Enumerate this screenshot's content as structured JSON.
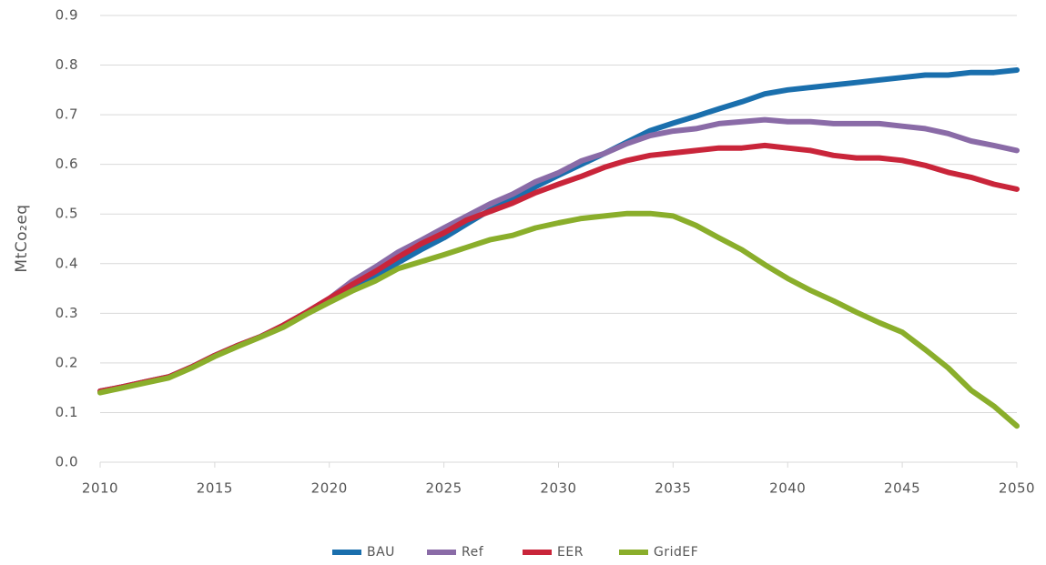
{
  "chart_data": {
    "type": "line",
    "y_label": "MtCo₂eq",
    "x": [
      2010,
      2011,
      2012,
      2013,
      2014,
      2015,
      2016,
      2017,
      2018,
      2019,
      2020,
      2021,
      2022,
      2023,
      2024,
      2025,
      2026,
      2027,
      2028,
      2029,
      2030,
      2031,
      2032,
      2033,
      2034,
      2035,
      2036,
      2037,
      2038,
      2039,
      2040,
      2041,
      2042,
      2043,
      2044,
      2045,
      2046,
      2047,
      2048,
      2049,
      2050
    ],
    "xlim": [
      2010,
      2050
    ],
    "xticks": [
      2010,
      2015,
      2020,
      2025,
      2030,
      2035,
      2040,
      2045,
      2050
    ],
    "ylim": [
      0,
      0.9
    ],
    "yticks": [
      {
        "value": 0,
        "label": "0.0"
      },
      0.1,
      0.2,
      0.3,
      0.4,
      0.5,
      0.6,
      0.7,
      0.8,
      0.9
    ],
    "grid": true,
    "legend": "bottom",
    "series": [
      {
        "name": "BAU",
        "color": "#1a6fad",
        "values": [
          0.143,
          0.152,
          0.162,
          0.172,
          0.192,
          0.215,
          0.235,
          0.253,
          0.275,
          0.3,
          0.328,
          0.355,
          0.375,
          0.402,
          0.428,
          0.452,
          0.48,
          0.508,
          0.53,
          0.555,
          0.578,
          0.6,
          0.622,
          0.645,
          0.668,
          0.683,
          0.697,
          0.712,
          0.726,
          0.742,
          0.75,
          0.755,
          0.76,
          0.765,
          0.77,
          0.775,
          0.78,
          0.78,
          0.785,
          0.785,
          0.79
        ]
      },
      {
        "name": "Ref",
        "color": "#8a6ba7",
        "values": [
          0.143,
          0.152,
          0.162,
          0.172,
          0.192,
          0.215,
          0.235,
          0.253,
          0.276,
          0.302,
          0.33,
          0.365,
          0.393,
          0.423,
          0.447,
          0.472,
          0.496,
          0.52,
          0.54,
          0.565,
          0.583,
          0.607,
          0.622,
          0.642,
          0.658,
          0.667,
          0.672,
          0.682,
          0.686,
          0.69,
          0.686,
          0.686,
          0.682,
          0.682,
          0.682,
          0.677,
          0.672,
          0.662,
          0.647,
          0.638,
          0.628
        ]
      },
      {
        "name": "EER",
        "color": "#c9253a",
        "values": [
          0.143,
          0.152,
          0.162,
          0.172,
          0.192,
          0.215,
          0.235,
          0.253,
          0.276,
          0.302,
          0.33,
          0.358,
          0.384,
          0.413,
          0.44,
          0.462,
          0.488,
          0.505,
          0.522,
          0.543,
          0.56,
          0.576,
          0.594,
          0.608,
          0.618,
          0.623,
          0.628,
          0.633,
          0.633,
          0.638,
          0.633,
          0.628,
          0.618,
          0.613,
          0.613,
          0.608,
          0.598,
          0.584,
          0.574,
          0.56,
          0.55
        ]
      },
      {
        "name": "GridEF",
        "color": "#8aae2b",
        "values": [
          0.14,
          0.15,
          0.16,
          0.17,
          0.19,
          0.213,
          0.233,
          0.252,
          0.272,
          0.298,
          0.322,
          0.345,
          0.365,
          0.39,
          0.404,
          0.418,
          0.433,
          0.448,
          0.457,
          0.472,
          0.482,
          0.491,
          0.496,
          0.501,
          0.501,
          0.496,
          0.477,
          0.452,
          0.428,
          0.398,
          0.37,
          0.346,
          0.325,
          0.302,
          0.281,
          0.262,
          0.227,
          0.19,
          0.145,
          0.113,
          0.073
        ]
      }
    ]
  }
}
